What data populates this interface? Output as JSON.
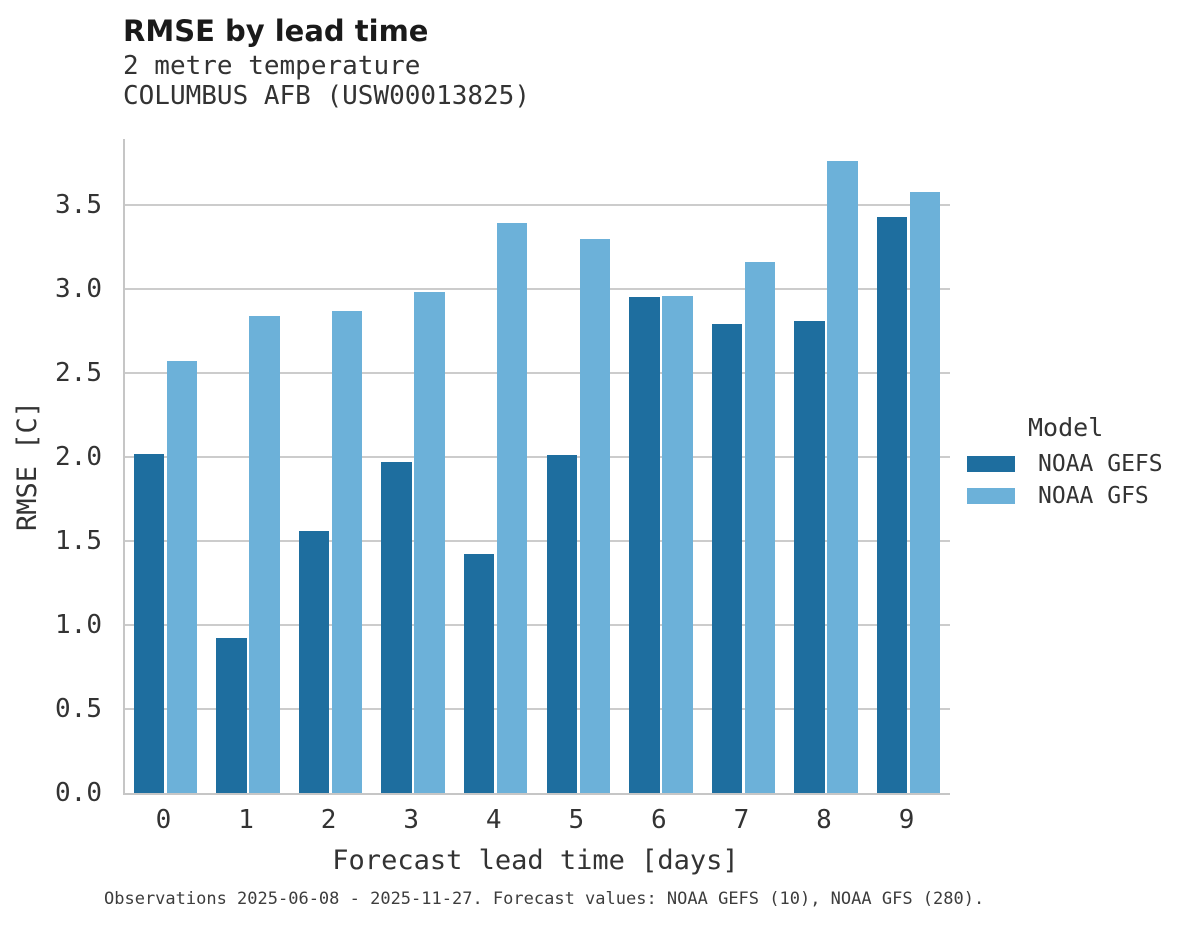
{
  "header": {
    "title": "RMSE by lead time",
    "subtitle_line1": "2 metre temperature",
    "subtitle_line2": "COLUMBUS AFB (USW00013825)"
  },
  "legend": {
    "title": "Model",
    "entries": [
      {
        "label": "NOAA GEFS",
        "color": "#1e6e9f"
      },
      {
        "label": "NOAA GFS",
        "color": "#6cb1d9"
      }
    ]
  },
  "caption": "Observations 2025-06-08 - 2025-11-27. Forecast values: NOAA GEFS (10), NOAA GFS (280).",
  "chart_data": {
    "type": "bar",
    "title": "RMSE by lead time",
    "subtitle": [
      "2 metre temperature",
      "COLUMBUS AFB (USW00013825)"
    ],
    "xlabel": "Forecast lead time [days]",
    "ylabel": "RMSE [C]",
    "categories": [
      "0",
      "1",
      "2",
      "3",
      "4",
      "5",
      "6",
      "7",
      "8",
      "9"
    ],
    "series": [
      {
        "name": "NOAA GEFS",
        "color": "#1e6e9f",
        "values": [
          2.02,
          0.92,
          1.56,
          1.97,
          1.42,
          2.01,
          2.95,
          2.79,
          2.81,
          3.43
        ]
      },
      {
        "name": "NOAA GFS",
        "color": "#6cb1d9",
        "values": [
          2.57,
          2.84,
          2.87,
          2.98,
          3.39,
          3.3,
          2.96,
          3.16,
          3.76,
          3.58
        ]
      }
    ],
    "ylim": [
      0.0,
      3.89
    ],
    "yticks": [
      "0.0",
      "0.5",
      "1.0",
      "1.5",
      "2.0",
      "2.5",
      "3.0",
      "3.5"
    ],
    "grid": true,
    "legend_position": "right",
    "legend_title": "Model",
    "colors": {
      "grid": "#cccccc",
      "spine": "#c6c6c6",
      "text": "#333333"
    }
  }
}
